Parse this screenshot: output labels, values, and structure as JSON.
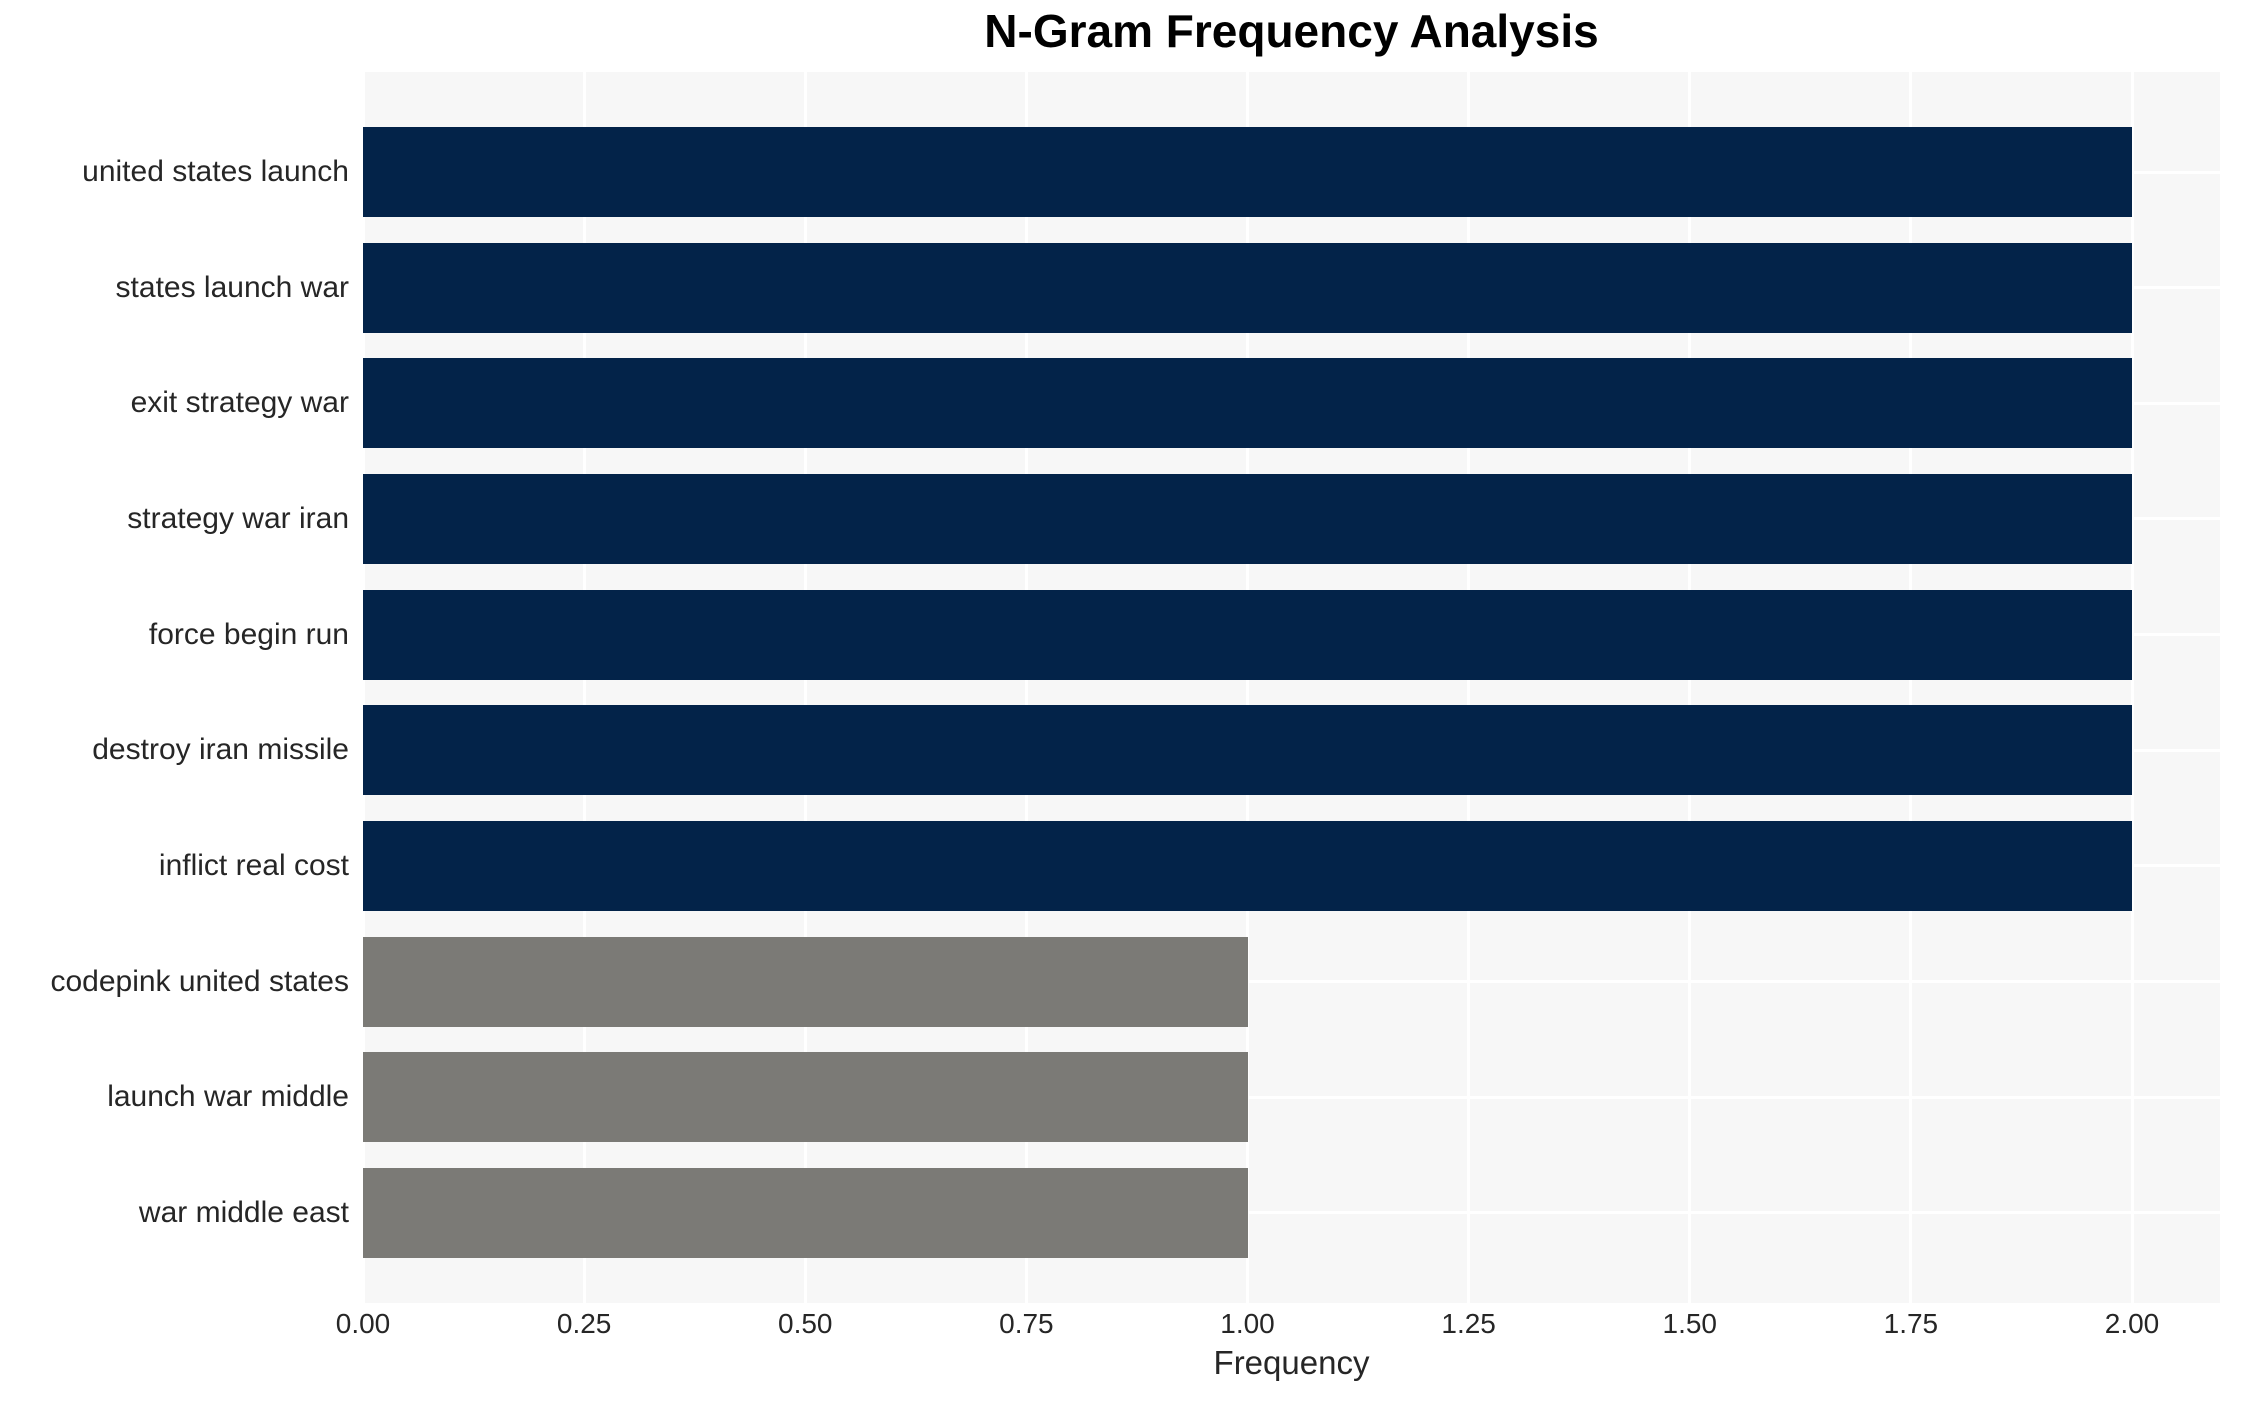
{
  "chart_data": {
    "type": "bar",
    "orientation": "horizontal",
    "title": "N-Gram Frequency Analysis",
    "xlabel": "Frequency",
    "ylabel": "",
    "categories": [
      "united states launch",
      "states launch war",
      "exit strategy war",
      "strategy war iran",
      "force begin run",
      "destroy iran missile",
      "inflict real cost",
      "codepink united states",
      "launch war middle",
      "war middle east"
    ],
    "values": [
      2,
      2,
      2,
      2,
      2,
      2,
      2,
      1,
      1,
      1
    ],
    "bar_colors": [
      "#032349",
      "#032349",
      "#032349",
      "#032349",
      "#032349",
      "#032349",
      "#032349",
      "#7b7a76",
      "#7b7a76",
      "#7b7a76"
    ],
    "xticks": [
      "0.00",
      "0.25",
      "0.50",
      "0.75",
      "1.00",
      "1.25",
      "1.50",
      "1.75",
      "2.00"
    ],
    "xlim": [
      0,
      2.1
    ],
    "grid": true,
    "legend": "none",
    "colors": {
      "bar_high": "#032349",
      "bar_low": "#7b7a76",
      "plot_background": "#f7f7f7",
      "figure_background": "#ffffff",
      "gridline": "#ffffff",
      "text": "#262626",
      "title_text": "#000000"
    }
  }
}
